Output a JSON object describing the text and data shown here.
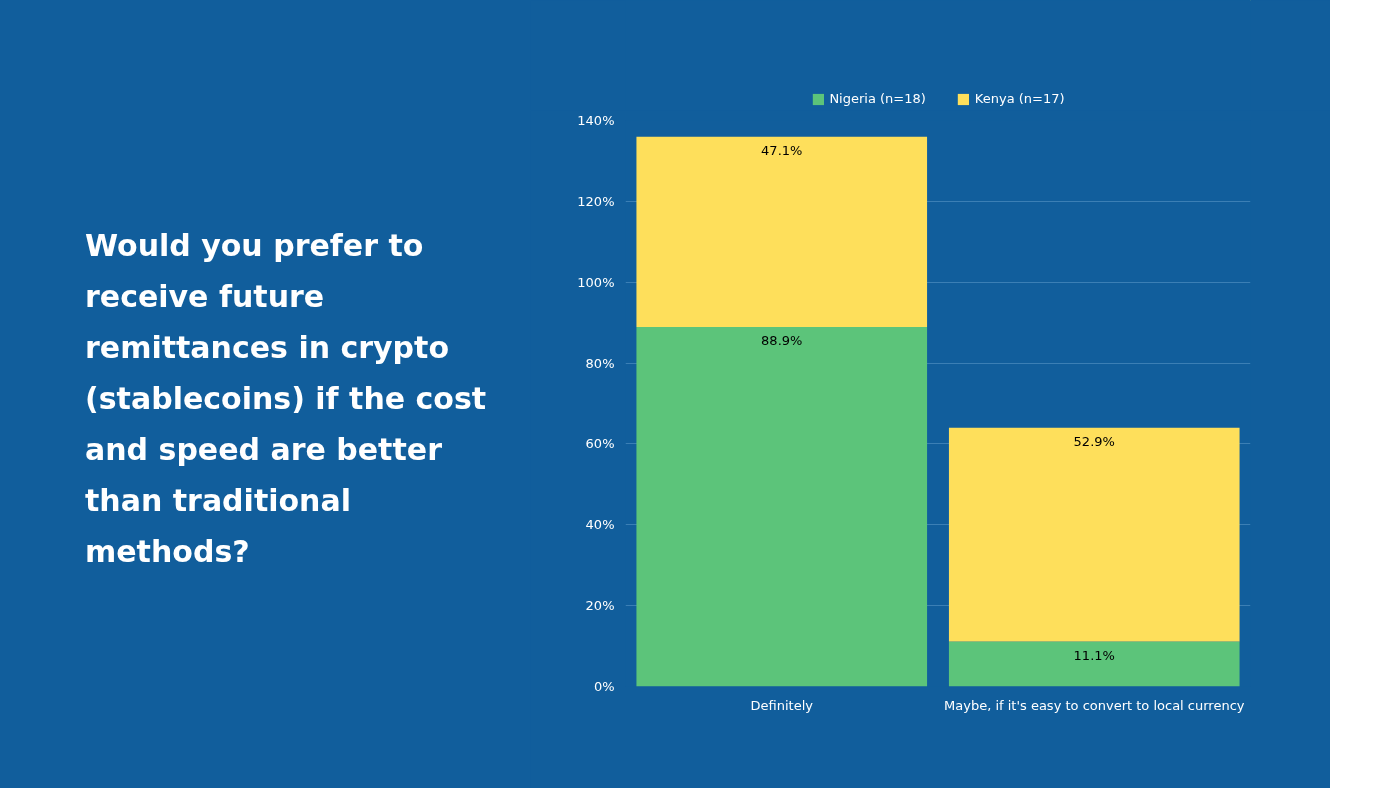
{
  "chart_data": {
    "type": "bar",
    "title": "Would you prefer to receive future remittances in crypto (stablecoins) if the cost and speed are better than traditional methods?",
    "categories": [
      "Definitely",
      "Maybe, if it's easy to convert to local currency"
    ],
    "stacked": true,
    "series": [
      {
        "name": "Nigeria (n=18)",
        "color": "#5cc47a",
        "values": [
          88.9,
          11.1
        ],
        "value_labels": [
          "88.9%",
          "11.1%"
        ]
      },
      {
        "name": "Kenya (n=17)",
        "color": "#fedf5b",
        "values": [
          47.1,
          52.9
        ],
        "value_labels": [
          "47.1%",
          "52.9%"
        ]
      }
    ],
    "ylim": [
      0,
      140
    ],
    "yticks": [
      {
        "value": 0,
        "label": "0%"
      },
      {
        "value": 20,
        "label": "20%"
      },
      {
        "value": 40,
        "label": "40%"
      },
      {
        "value": 60,
        "label": "60%"
      },
      {
        "value": 80,
        "label": "80%"
      },
      {
        "value": 100,
        "label": "100%"
      },
      {
        "value": 120,
        "label": "120%"
      },
      {
        "value": 140,
        "label": "140%"
      }
    ],
    "grid": "y",
    "legend": "top"
  }
}
